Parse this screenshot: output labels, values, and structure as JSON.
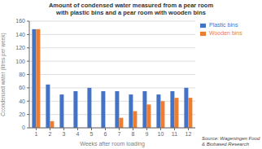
{
  "chart_data": {
    "type": "bar",
    "title": "Amount of condensed water measured from a pear room\nwith plastic bins and a pear room with wooden bins",
    "xlabel": "Weeks after room loading",
    "ylabel": "Ccondensed water (litres per week)",
    "categories": [
      "1",
      "2",
      "3",
      "4",
      "5",
      "6",
      "7",
      "8",
      "9",
      "10",
      "11",
      "12"
    ],
    "series": [
      {
        "name": "Plastic bins",
        "color": "#4472C4",
        "values": [
          148,
          65,
          50,
          55,
          60,
          55,
          55,
          50,
          55,
          50,
          55,
          60
        ]
      },
      {
        "name": "Wooden bins",
        "color": "#ED7D31",
        "values": [
          148,
          10,
          0,
          0,
          0,
          0,
          15,
          25,
          35,
          40,
          45,
          45
        ]
      }
    ],
    "ylim": [
      0,
      160
    ],
    "yticks": [
      0,
      20,
      40,
      60,
      80,
      100,
      120,
      140,
      160
    ],
    "grid": true,
    "legend": "right",
    "annotation": "Source: Wageningen Food\n& Biobased Research"
  }
}
